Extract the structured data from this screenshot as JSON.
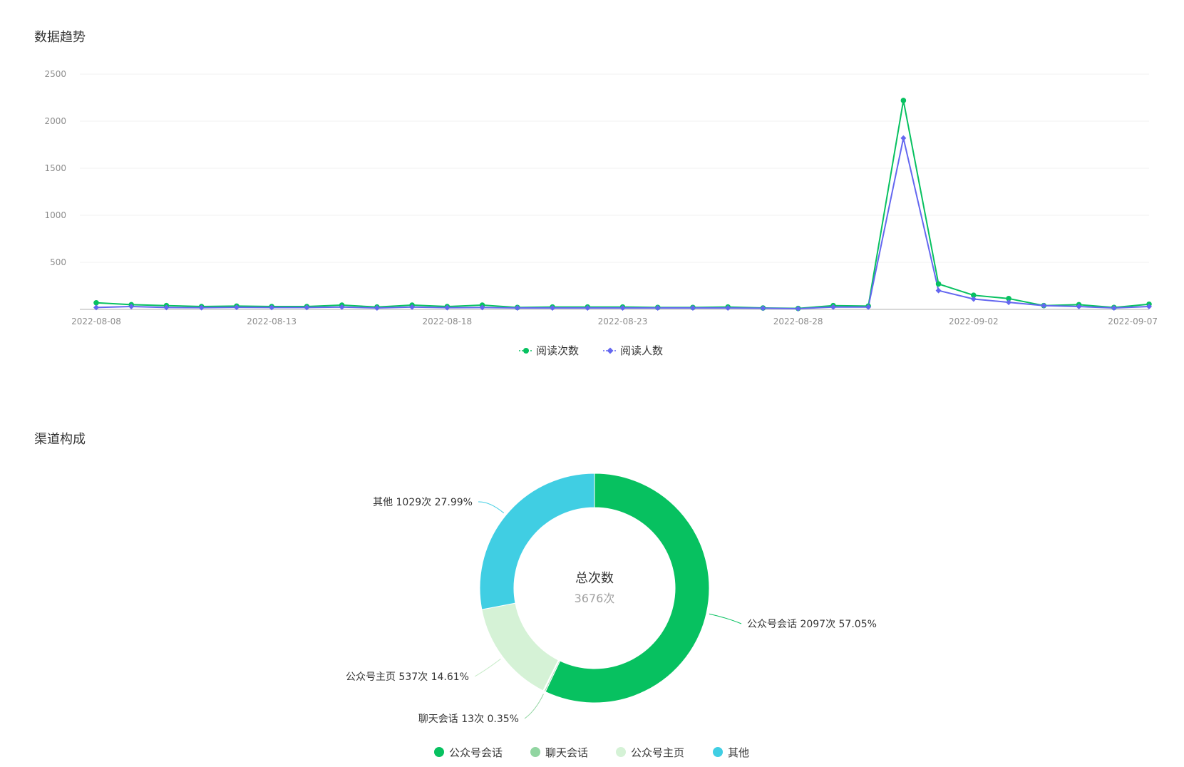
{
  "sections": {
    "trend_title": "数据趋势",
    "channel_title": "渠道构成"
  },
  "colors": {
    "reads": "#07c160",
    "readers": "#6467f0",
    "grid": "#f0f0f0",
    "axis": "#cccccc"
  },
  "chart_data": [
    {
      "type": "line",
      "x": [
        "2022-08-08",
        "2022-08-09",
        "2022-08-10",
        "2022-08-11",
        "2022-08-12",
        "2022-08-13",
        "2022-08-14",
        "2022-08-15",
        "2022-08-16",
        "2022-08-17",
        "2022-08-18",
        "2022-08-19",
        "2022-08-20",
        "2022-08-21",
        "2022-08-22",
        "2022-08-23",
        "2022-08-24",
        "2022-08-25",
        "2022-08-26",
        "2022-08-27",
        "2022-08-28",
        "2022-08-29",
        "2022-08-30",
        "2022-08-31",
        "2022-09-01",
        "2022-09-02",
        "2022-09-03",
        "2022-09-04",
        "2022-09-05",
        "2022-09-06",
        "2022-09-07"
      ],
      "x_tick_labels": [
        "2022-08-08",
        "2022-08-13",
        "2022-08-18",
        "2022-08-23",
        "2022-08-28",
        "2022-09-02",
        "2022-09-07"
      ],
      "y_tick_labels": [
        "500",
        "1000",
        "1500",
        "2000",
        "2500"
      ],
      "ylim": [
        0,
        2500
      ],
      "grid": true,
      "legend": "bottom-center",
      "series": [
        {
          "name": "阅读次数",
          "color": "#07c160",
          "marker": "circle",
          "values": [
            70,
            50,
            40,
            30,
            35,
            30,
            30,
            45,
            25,
            45,
            30,
            45,
            20,
            25,
            25,
            25,
            20,
            20,
            25,
            15,
            10,
            40,
            35,
            2220,
            270,
            150,
            115,
            40,
            50,
            20,
            55
          ]
        },
        {
          "name": "阅读人数",
          "color": "#6467f0",
          "marker": "diamond",
          "values": [
            20,
            30,
            20,
            18,
            22,
            20,
            20,
            25,
            15,
            25,
            18,
            20,
            15,
            15,
            15,
            15,
            15,
            15,
            15,
            12,
            8,
            25,
            25,
            1820,
            200,
            110,
            75,
            40,
            30,
            15,
            30
          ]
        }
      ]
    },
    {
      "type": "pie",
      "style": "donut",
      "center_title": "总次数",
      "center_value": "3676次",
      "legend": "bottom-center",
      "slices": [
        {
          "name": "公众号会话",
          "value": 2097,
          "percent": 57.05,
          "label": "公众号会话 2097次 57.05%",
          "color": "#07c160"
        },
        {
          "name": "聊天会话",
          "value": 13,
          "percent": 0.35,
          "label": "聊天会话 13次 0.35%",
          "color": "#91d5a1"
        },
        {
          "name": "公众号主页",
          "value": 537,
          "percent": 14.61,
          "label": "公众号主页 537次 14.61%",
          "color": "#d5f2d6"
        },
        {
          "name": "其他",
          "value": 1029,
          "percent": 27.99,
          "label": "其他 1029次 27.99%",
          "color": "#40cee3"
        }
      ]
    }
  ]
}
